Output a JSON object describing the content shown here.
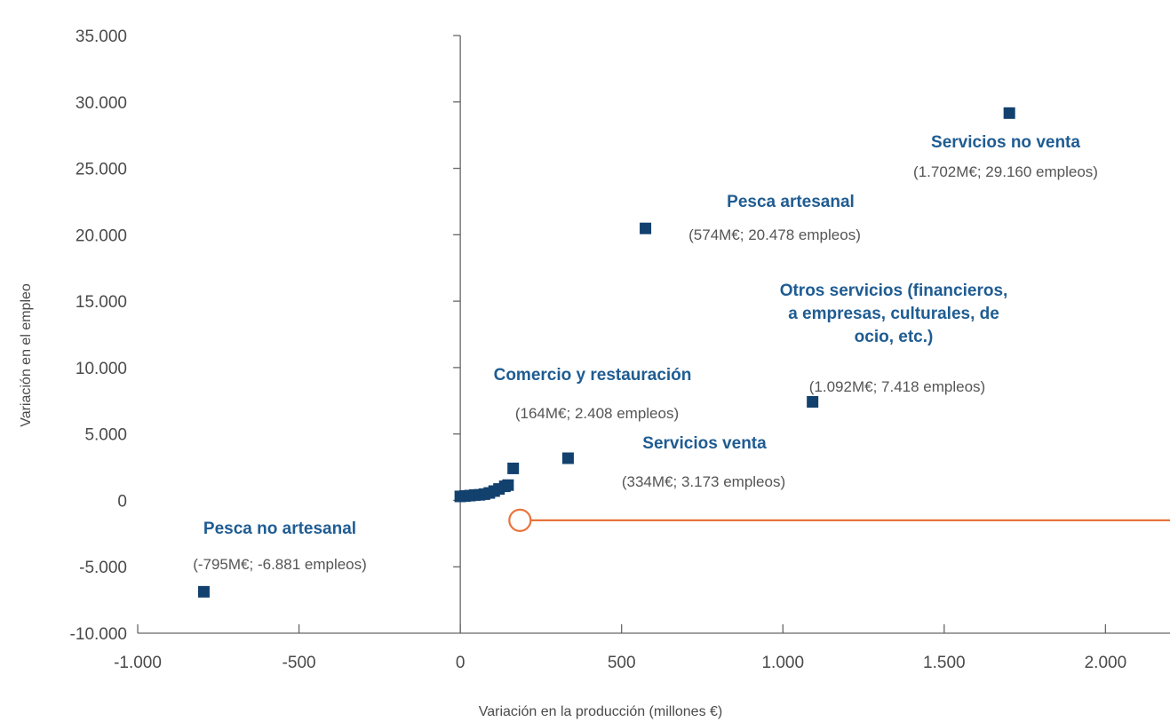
{
  "chart_data": {
    "type": "scatter",
    "xlabel": "Variación en la producción (millones €)",
    "ylabel": "Variación en el empleo",
    "xlim": [
      -1000,
      2200
    ],
    "ylim": [
      -10000,
      35000
    ],
    "x_ticks": [
      -1000,
      -500,
      0,
      500,
      1000,
      1500,
      2000
    ],
    "x_tick_labels": [
      "-1.000",
      "-500",
      "0",
      "500",
      "1.000",
      "1.500",
      "2.000"
    ],
    "y_ticks": [
      -10000,
      -5000,
      0,
      5000,
      10000,
      15000,
      20000,
      25000,
      30000,
      35000
    ],
    "y_tick_labels": [
      "-10.000",
      "-5.000",
      "0",
      "5.000",
      "10.000",
      "15.000",
      "20.000",
      "25.000",
      "30.000",
      "35.000"
    ],
    "grid": false,
    "points": [
      {
        "x": -795,
        "y": -6881
      },
      {
        "x": 0,
        "y": 300
      },
      {
        "x": 15,
        "y": 330
      },
      {
        "x": 30,
        "y": 360
      },
      {
        "x": 45,
        "y": 400
      },
      {
        "x": 60,
        "y": 420
      },
      {
        "x": 75,
        "y": 470
      },
      {
        "x": 90,
        "y": 560
      },
      {
        "x": 105,
        "y": 700
      },
      {
        "x": 120,
        "y": 860
      },
      {
        "x": 138,
        "y": 1060
      },
      {
        "x": 148,
        "y": 1150
      },
      {
        "x": 164,
        "y": 2408
      },
      {
        "x": 334,
        "y": 3173
      },
      {
        "x": 574,
        "y": 20478
      },
      {
        "x": 1092,
        "y": 7418
      },
      {
        "x": 1702,
        "y": 29160
      }
    ],
    "highlight": {
      "x": 185,
      "y": -1500,
      "color": "#e8743b"
    },
    "reference_line": {
      "y": -1500,
      "x_from": 185,
      "x_to": 2200,
      "color": "#e8743b"
    },
    "annotations": [
      {
        "title_lines": [
          "Servicios no venta"
        ],
        "value": "(1.702M€; 29.160 empleos)"
      },
      {
        "title_lines": [
          "Pesca artesanal"
        ],
        "value": "(574M€; 20.478 empleos)"
      },
      {
        "title_lines": [
          "Otros servicios (financieros,",
          "a empresas, culturales, de",
          "ocio, etc.)"
        ],
        "value": "(1.092M€; 7.418 empleos)"
      },
      {
        "title_lines": [
          "Comercio y restauración"
        ],
        "value": "(164M€; 2.408 empleos)"
      },
      {
        "title_lines": [
          "Servicios venta"
        ],
        "value": "(334M€; 3.173 empleos)"
      },
      {
        "title_lines": [
          "Pesca no artesanal"
        ],
        "value": "(-795M€; -6.881 empleos)"
      }
    ],
    "colors": {
      "points": "#12416e",
      "annotation_title": "#1f5c92",
      "highlight": "#e8743b"
    }
  }
}
